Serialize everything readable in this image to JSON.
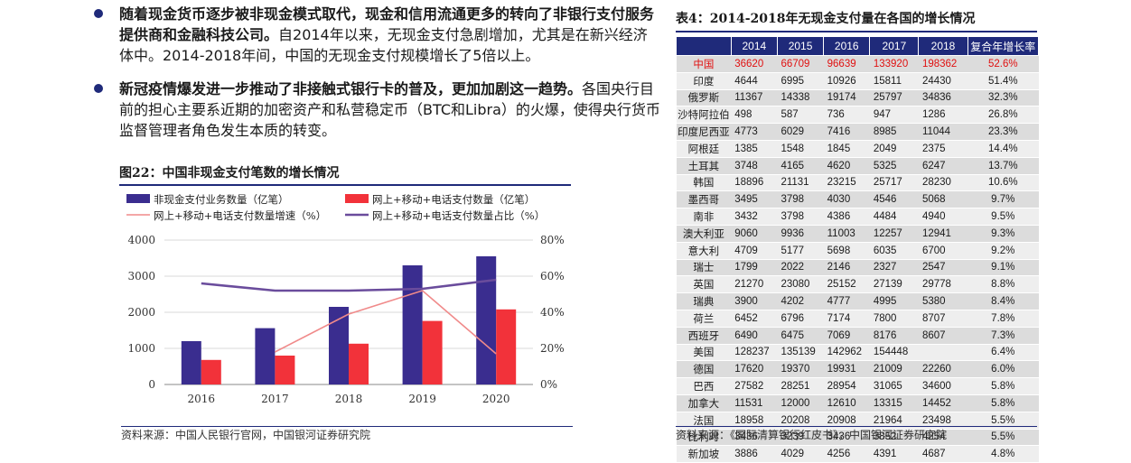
{
  "bullets": [
    {
      "bold": "随着现金货币逐步被非现金模式取代，现金和信用流通更多的转向了非银行支付服务提供商和金融科技公司。",
      "text": "自2014年以来，无现金支付急剧增加，尤其是在新兴经济体中。2014-2018年间，中国的无现金支付规模增长了5倍以上。"
    },
    {
      "bold": "新冠疫情爆发进一步推动了非接触式银行卡的普及，更加加剧这一趋势。",
      "text": "各国央行目前的担心主要系近期的加密资产和私营稳定币（BTC和Libra）的火爆，使得央行货币监督管理者角色发生本质的转变。"
    }
  ],
  "figure": {
    "title": "图22：中国非现金支付笔数的增长情况",
    "source": "资料来源：中国人民银行官网，中国银河证券研究院"
  },
  "chart_data": {
    "type": "bar",
    "categories": [
      "2016",
      "2017",
      "2018",
      "2019",
      "2020"
    ],
    "series": [
      {
        "name": "非现金支付业务数量（亿笔）",
        "kind": "bar",
        "axis": "left",
        "color": "#3a2d8f",
        "values": [
          1200,
          1560,
          2150,
          3300,
          3550
        ]
      },
      {
        "name": "网上+移动+电话支付数量（亿笔）",
        "kind": "bar",
        "axis": "left",
        "color": "#f2323a",
        "values": [
          680,
          800,
          1130,
          1760,
          2080
        ]
      },
      {
        "name": "网上+移动+电话支付数量增速（%）",
        "kind": "line",
        "axis": "right",
        "color": "#f08a8a",
        "values": [
          null,
          18,
          39,
          52,
          17
        ]
      },
      {
        "name": "网上+移动+电话支付数量占比（%）",
        "kind": "line",
        "axis": "right",
        "color": "#6a4c9c",
        "values": [
          56,
          52,
          52,
          53,
          58
        ]
      }
    ],
    "ylim": [
      0,
      4000
    ],
    "yticks": [
      "0",
      "1000",
      "2000",
      "3000",
      "4000"
    ],
    "y2lim": [
      0,
      80
    ],
    "y2ticks": [
      "0%",
      "20%",
      "40%",
      "60%",
      "80%"
    ],
    "grid": true,
    "legend": "top"
  },
  "table": {
    "title": "表4：2014-2018年无现金支付量在各国的增长情况",
    "headers": [
      "",
      "2014",
      "2015",
      "2016",
      "2017",
      "2018",
      "复合年增长率"
    ],
    "rows": [
      [
        "中国",
        "36620",
        "66709",
        "96639",
        "133920",
        "198362",
        "52.6%"
      ],
      [
        "印度",
        "4644",
        "6995",
        "10926",
        "15811",
        "24430",
        "51.4%"
      ],
      [
        "俄罗斯",
        "11367",
        "14338",
        "19174",
        "25797",
        "34836",
        "32.3%"
      ],
      [
        "沙特阿拉伯",
        "498",
        "587",
        "736",
        "947",
        "1286",
        "26.8%"
      ],
      [
        "印度尼西亚",
        "4773",
        "6029",
        "7416",
        "8985",
        "11044",
        "23.3%"
      ],
      [
        "阿根廷",
        "1385",
        "1548",
        "1845",
        "2049",
        "2375",
        "14.4%"
      ],
      [
        "土耳其",
        "3748",
        "4165",
        "4620",
        "5325",
        "6247",
        "13.7%"
      ],
      [
        "韩国",
        "18896",
        "21131",
        "23215",
        "25717",
        "28230",
        "10.6%"
      ],
      [
        "墨西哥",
        "3495",
        "3798",
        "4030",
        "4546",
        "5068",
        "9.7%"
      ],
      [
        "南非",
        "3432",
        "3798",
        "4386",
        "4484",
        "4940",
        "9.5%"
      ],
      [
        "澳大利亚",
        "9060",
        "9936",
        "11003",
        "12257",
        "12941",
        "9.3%"
      ],
      [
        "意大利",
        "4709",
        "5177",
        "5698",
        "6035",
        "6700",
        "9.2%"
      ],
      [
        "瑞士",
        "1799",
        "2022",
        "2146",
        "2327",
        "2547",
        "9.1%"
      ],
      [
        "英国",
        "21270",
        "23080",
        "25152",
        "27139",
        "29778",
        "8.8%"
      ],
      [
        "瑞典",
        "3900",
        "4202",
        "4777",
        "4995",
        "5380",
        "8.4%"
      ],
      [
        "荷兰",
        "6452",
        "6796",
        "7174",
        "7800",
        "8707",
        "7.8%"
      ],
      [
        "西班牙",
        "6490",
        "6475",
        "7069",
        "8176",
        "8607",
        "7.3%"
      ],
      [
        "美国",
        "128237",
        "135139",
        "142962",
        "154448",
        "",
        "6.4%"
      ],
      [
        "德国",
        "17620",
        "19370",
        "19931",
        "21009",
        "22260",
        "6.0%"
      ],
      [
        "巴西",
        "27582",
        "28251",
        "28954",
        "31065",
        "34600",
        "5.8%"
      ],
      [
        "加拿大",
        "11531",
        "12000",
        "12610",
        "13315",
        "14452",
        "5.8%"
      ],
      [
        "法国",
        "18958",
        "20208",
        "20908",
        "21964",
        "23498",
        "5.5%"
      ],
      [
        "比利时",
        "3436",
        "3239",
        "3436",
        "3852",
        "4254",
        "5.5%"
      ],
      [
        "新加坡",
        "3886",
        "4029",
        "4256",
        "4391",
        "4687",
        "4.8%"
      ]
    ],
    "highlight_color": "#e01010",
    "header_bg": "#1f2a7a",
    "source": "资料来源：《国际清算银行红皮书》，中国银河证券研究院"
  }
}
